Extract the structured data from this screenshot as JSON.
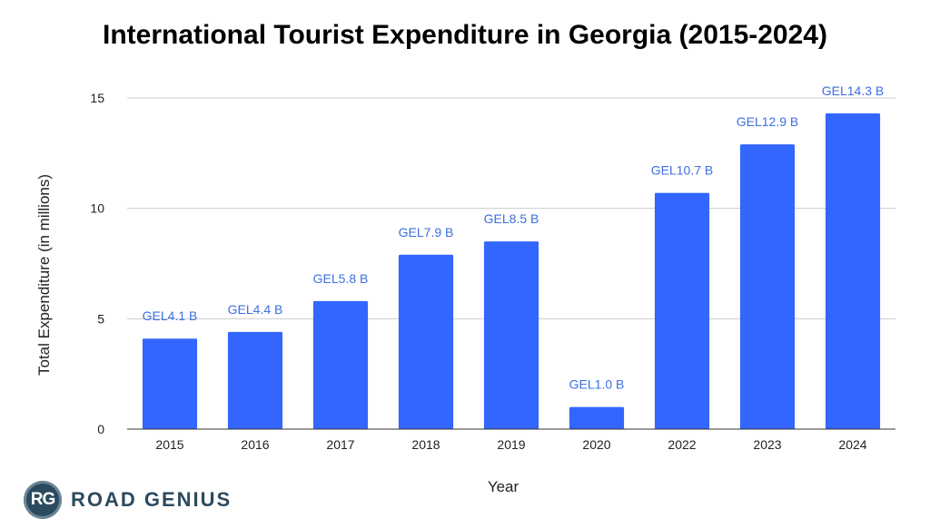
{
  "chart_data": {
    "type": "bar",
    "title": "International Tourist Expenditure in Georgia (2015-2024)",
    "xlabel": "Year",
    "ylabel": "Total Expenditure (in millions)",
    "categories": [
      "2015",
      "2016",
      "2017",
      "2018",
      "2019",
      "2020",
      "2022",
      "2023",
      "2024"
    ],
    "values": [
      4.1,
      4.4,
      5.8,
      7.9,
      8.5,
      1.0,
      10.7,
      12.9,
      14.3
    ],
    "data_labels": [
      "GEL4.1 B",
      "GEL4.4 B",
      "GEL5.8 B",
      "GEL7.9 B",
      "GEL8.5 B",
      "GEL1.0 B",
      "GEL10.7 B",
      "GEL12.9 B",
      "GEL14.3 B"
    ],
    "ylim": [
      0,
      15
    ],
    "yticks": [
      0,
      5,
      10,
      15
    ],
    "grid": true,
    "bar_color": "#3366ff",
    "label_color": "#3d6fe0"
  },
  "branding": {
    "badge": "RG",
    "name": "ROAD GENIUS"
  }
}
